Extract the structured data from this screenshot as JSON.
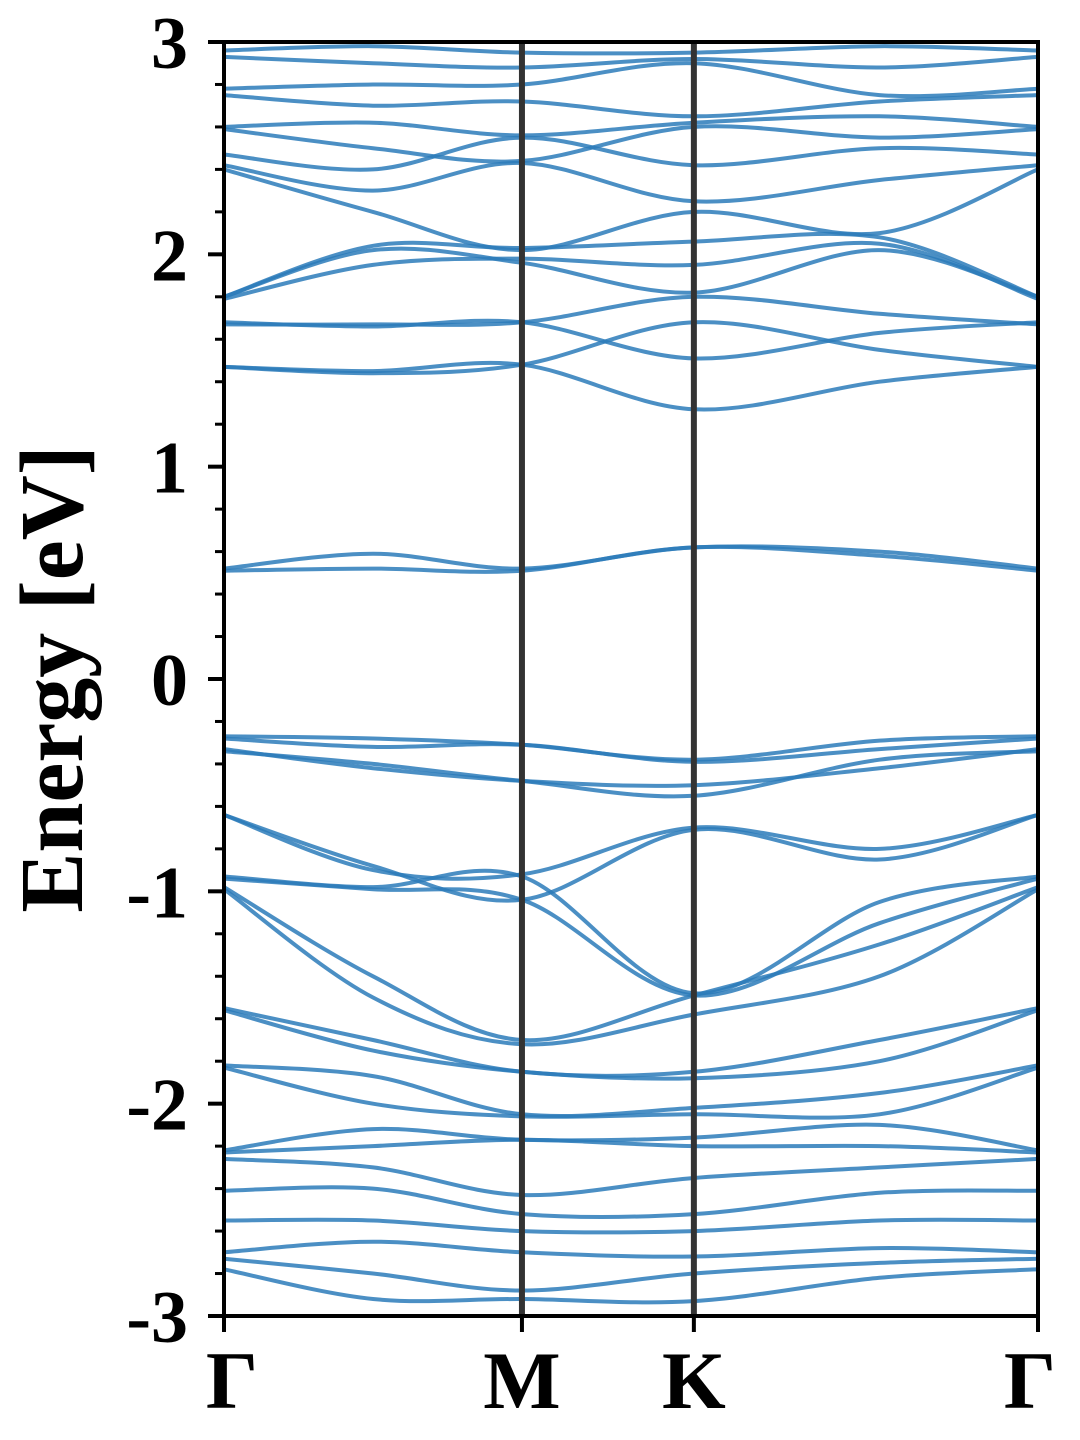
{
  "chart_data": {
    "type": "line",
    "title": "",
    "xlabel": "",
    "ylabel": "Energy [eV]",
    "ylim": [
      -3,
      3
    ],
    "y_ticks": [
      {
        "value": 3,
        "label": "3"
      },
      {
        "value": 2,
        "label": "2"
      },
      {
        "value": 1,
        "label": "1"
      },
      {
        "value": 0,
        "label": "0"
      },
      {
        "value": -1,
        "label": "-1"
      },
      {
        "value": -2,
        "label": "-2"
      },
      {
        "value": -3,
        "label": "-3"
      }
    ],
    "y_minor_step": 0.2,
    "x_ticks": [
      {
        "value": 0.0,
        "label": "Γ"
      },
      {
        "value": 1.0,
        "label": "M"
      },
      {
        "value": 1.577,
        "label": "K"
      },
      {
        "value": 2.732,
        "label": "Γ"
      }
    ],
    "xlim": [
      0,
      2.732
    ],
    "grid": false,
    "legend": "none",
    "colors": {
      "band": "#2b7bba",
      "divider": "#333333",
      "axis": "#000000"
    },
    "series": [
      {
        "x": [
          0,
          0.5,
          1.0,
          1.577,
          2.2,
          2.732
        ],
        "values": [
          0.52,
          0.59,
          0.52,
          0.62,
          0.6,
          0.52
        ]
      },
      {
        "x": [
          0,
          0.5,
          1.0,
          1.577,
          2.2,
          2.732
        ],
        "values": [
          0.51,
          0.52,
          0.51,
          0.62,
          0.58,
          0.51
        ]
      },
      {
        "x": [
          0,
          0.5,
          1.0,
          1.577,
          2.2,
          2.732
        ],
        "values": [
          1.47,
          1.45,
          1.48,
          1.27,
          1.4,
          1.47
        ]
      },
      {
        "x": [
          0,
          0.5,
          1.0,
          1.577,
          2.2,
          2.732
        ],
        "values": [
          1.47,
          1.44,
          1.48,
          1.68,
          1.55,
          1.47
        ]
      },
      {
        "x": [
          0,
          0.5,
          1.0,
          1.577,
          2.2,
          2.732
        ],
        "values": [
          1.68,
          1.66,
          1.68,
          1.51,
          1.63,
          1.68
        ]
      },
      {
        "x": [
          0,
          0.5,
          1.0,
          1.577,
          2.2,
          2.732
        ],
        "values": [
          1.67,
          1.67,
          1.68,
          1.8,
          1.72,
          1.67
        ]
      },
      {
        "x": [
          0,
          0.5,
          1.0,
          1.577,
          2.2,
          2.732
        ],
        "values": [
          1.8,
          2.02,
          1.96,
          1.82,
          2.02,
          1.8
        ]
      },
      {
        "x": [
          0,
          0.5,
          1.0,
          1.577,
          2.2,
          2.732
        ],
        "values": [
          1.79,
          1.95,
          1.98,
          1.95,
          2.05,
          1.79
        ]
      },
      {
        "x": [
          0,
          0.5,
          1.0,
          1.577,
          2.2,
          2.732
        ],
        "values": [
          1.8,
          2.04,
          2.03,
          2.06,
          2.08,
          1.8
        ]
      },
      {
        "x": [
          0,
          0.5,
          1.0,
          1.577,
          2.2,
          2.732
        ],
        "values": [
          2.4,
          2.2,
          2.02,
          2.2,
          2.1,
          2.4
        ]
      },
      {
        "x": [
          0,
          0.5,
          1.0,
          1.577,
          2.2,
          2.732
        ],
        "values": [
          2.42,
          2.3,
          2.43,
          2.25,
          2.35,
          2.42
        ]
      },
      {
        "x": [
          0,
          0.5,
          1.0,
          1.577,
          2.2,
          2.732
        ],
        "values": [
          2.47,
          2.4,
          2.55,
          2.42,
          2.5,
          2.47
        ]
      },
      {
        "x": [
          0,
          0.5,
          1.0,
          1.577,
          2.2,
          2.732
        ],
        "values": [
          2.59,
          2.5,
          2.44,
          2.6,
          2.55,
          2.59
        ]
      },
      {
        "x": [
          0,
          0.5,
          1.0,
          1.577,
          2.2,
          2.732
        ],
        "values": [
          2.6,
          2.62,
          2.56,
          2.62,
          2.65,
          2.6
        ]
      },
      {
        "x": [
          0,
          0.5,
          1.0,
          1.577,
          2.2,
          2.732
        ],
        "values": [
          2.75,
          2.7,
          2.72,
          2.65,
          2.72,
          2.75
        ]
      },
      {
        "x": [
          0,
          0.5,
          1.0,
          1.577,
          2.2,
          2.732
        ],
        "values": [
          2.78,
          2.8,
          2.8,
          2.9,
          2.75,
          2.78
        ]
      },
      {
        "x": [
          0,
          0.5,
          1.0,
          1.577,
          2.2,
          2.732
        ],
        "values": [
          2.93,
          2.9,
          2.88,
          2.92,
          2.88,
          2.93
        ]
      },
      {
        "x": [
          0,
          0.5,
          1.0,
          1.577,
          2.2,
          2.732
        ],
        "values": [
          2.96,
          2.98,
          2.95,
          2.95,
          2.98,
          2.96
        ]
      },
      {
        "x": [
          0,
          0.5,
          1.0,
          1.577,
          2.2,
          2.732
        ],
        "values": [
          -0.27,
          -0.28,
          -0.31,
          -0.38,
          -0.29,
          -0.27
        ]
      },
      {
        "x": [
          0,
          0.5,
          1.0,
          1.577,
          2.2,
          2.732
        ],
        "values": [
          -0.28,
          -0.32,
          -0.31,
          -0.39,
          -0.33,
          -0.28
        ]
      },
      {
        "x": [
          0,
          0.5,
          1.0,
          1.577,
          2.2,
          2.732
        ],
        "values": [
          -0.33,
          -0.42,
          -0.48,
          -0.5,
          -0.42,
          -0.33
        ]
      },
      {
        "x": [
          0,
          0.5,
          1.0,
          1.577,
          2.2,
          2.732
        ],
        "values": [
          -0.34,
          -0.4,
          -0.48,
          -0.55,
          -0.38,
          -0.34
        ]
      },
      {
        "x": [
          0,
          0.5,
          1.0,
          1.577,
          2.2,
          2.732
        ],
        "values": [
          -0.64,
          -0.9,
          -0.92,
          -0.7,
          -0.8,
          -0.64
        ]
      },
      {
        "x": [
          0,
          0.5,
          1.0,
          1.577,
          2.2,
          2.732
        ],
        "values": [
          -0.64,
          -0.88,
          -1.04,
          -0.71,
          -0.85,
          -0.64
        ]
      },
      {
        "x": [
          0,
          0.5,
          1.0,
          1.577,
          2.2,
          2.732
        ],
        "values": [
          -0.93,
          -0.98,
          -0.93,
          -1.48,
          -1.05,
          -0.93
        ]
      },
      {
        "x": [
          0,
          0.5,
          1.0,
          1.577,
          2.2,
          2.732
        ],
        "values": [
          -0.94,
          -0.99,
          -1.04,
          -1.49,
          -1.15,
          -0.94
        ]
      },
      {
        "x": [
          0,
          0.5,
          1.0,
          1.577,
          2.2,
          2.732
        ],
        "values": [
          -0.98,
          -1.4,
          -1.7,
          -1.49,
          -1.25,
          -0.98
        ]
      },
      {
        "x": [
          0,
          0.5,
          1.0,
          1.577,
          2.2,
          2.732
        ],
        "values": [
          -0.99,
          -1.5,
          -1.72,
          -1.58,
          -1.4,
          -0.99
        ]
      },
      {
        "x": [
          0,
          0.5,
          1.0,
          1.577,
          2.2,
          2.732
        ],
        "values": [
          -1.55,
          -1.7,
          -1.85,
          -1.85,
          -1.7,
          -1.55
        ]
      },
      {
        "x": [
          0,
          0.5,
          1.0,
          1.577,
          2.2,
          2.732
        ],
        "values": [
          -1.56,
          -1.75,
          -1.85,
          -1.88,
          -1.8,
          -1.56
        ]
      },
      {
        "x": [
          0,
          0.5,
          1.0,
          1.577,
          2.2,
          2.732
        ],
        "values": [
          -1.82,
          -1.87,
          -2.05,
          -2.02,
          -1.95,
          -1.82
        ]
      },
      {
        "x": [
          0,
          0.5,
          1.0,
          1.577,
          2.2,
          2.732
        ],
        "values": [
          -1.83,
          -2.0,
          -2.06,
          -2.05,
          -2.05,
          -1.83
        ]
      },
      {
        "x": [
          0,
          0.5,
          1.0,
          1.577,
          2.2,
          2.732
        ],
        "values": [
          -2.22,
          -2.12,
          -2.17,
          -2.16,
          -2.1,
          -2.22
        ]
      },
      {
        "x": [
          0,
          0.5,
          1.0,
          1.577,
          2.2,
          2.732
        ],
        "values": [
          -2.23,
          -2.2,
          -2.17,
          -2.2,
          -2.2,
          -2.23
        ]
      },
      {
        "x": [
          0,
          0.5,
          1.0,
          1.577,
          2.2,
          2.732
        ],
        "values": [
          -2.26,
          -2.3,
          -2.43,
          -2.35,
          -2.3,
          -2.26
        ]
      },
      {
        "x": [
          0,
          0.5,
          1.0,
          1.577,
          2.2,
          2.732
        ],
        "values": [
          -2.41,
          -2.4,
          -2.52,
          -2.52,
          -2.42,
          -2.41
        ]
      },
      {
        "x": [
          0,
          0.5,
          1.0,
          1.577,
          2.2,
          2.732
        ],
        "values": [
          -2.55,
          -2.55,
          -2.6,
          -2.6,
          -2.55,
          -2.55
        ]
      },
      {
        "x": [
          0,
          0.5,
          1.0,
          1.577,
          2.2,
          2.732
        ],
        "values": [
          -2.7,
          -2.65,
          -2.7,
          -2.72,
          -2.68,
          -2.7
        ]
      },
      {
        "x": [
          0,
          0.5,
          1.0,
          1.577,
          2.2,
          2.732
        ],
        "values": [
          -2.73,
          -2.8,
          -2.88,
          -2.8,
          -2.75,
          -2.73
        ]
      },
      {
        "x": [
          0,
          0.5,
          1.0,
          1.577,
          2.2,
          2.732
        ],
        "values": [
          -2.78,
          -2.92,
          -2.92,
          -2.93,
          -2.82,
          -2.78
        ]
      }
    ]
  }
}
